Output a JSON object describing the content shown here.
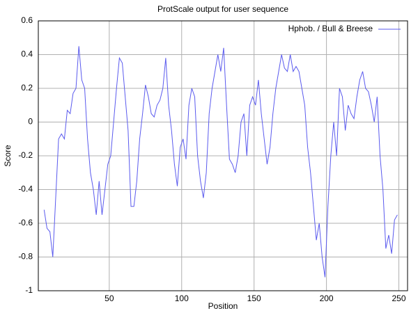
{
  "chart_data": {
    "type": "line",
    "title": "ProtScale output for user sequence",
    "x_label": "Position",
    "y_label": "Score",
    "x": [
      5,
      7,
      9,
      11,
      13,
      15,
      17,
      19,
      21,
      23,
      25,
      27,
      29,
      31,
      33,
      35,
      37,
      39,
      41,
      43,
      45,
      47,
      49,
      51,
      53,
      55,
      57,
      59,
      61,
      63,
      65,
      67,
      69,
      71,
      73,
      75,
      77,
      79,
      81,
      83,
      85,
      87,
      89,
      91,
      93,
      95,
      97,
      99,
      101,
      103,
      105,
      107,
      109,
      111,
      113,
      115,
      117,
      119,
      121,
      123,
      125,
      127,
      129,
      131,
      133,
      135,
      137,
      139,
      141,
      143,
      145,
      147,
      149,
      151,
      153,
      155,
      157,
      159,
      161,
      163,
      165,
      167,
      169,
      171,
      173,
      175,
      177,
      179,
      181,
      183,
      185,
      187,
      189,
      191,
      193,
      195,
      197,
      199,
      201,
      203,
      205,
      207,
      209,
      211,
      213,
      215,
      217,
      219,
      221,
      223,
      225,
      227,
      229,
      231,
      233,
      235,
      237,
      239,
      241,
      243,
      245,
      247,
      249
    ],
    "series": [
      {
        "name": "Hphob. / Bull & Breese",
        "color": "#5a5aee",
        "values": [
          -0.52,
          -0.63,
          -0.65,
          -0.8,
          -0.45,
          -0.1,
          -0.07,
          -0.1,
          0.07,
          0.05,
          0.17,
          0.2,
          0.45,
          0.25,
          0.2,
          -0.1,
          -0.3,
          -0.4,
          -0.55,
          -0.35,
          -0.55,
          -0.4,
          -0.25,
          -0.2,
          0,
          0.2,
          0.38,
          0.35,
          0.15,
          -0.05,
          -0.5,
          -0.5,
          -0.35,
          -0.1,
          0.05,
          0.22,
          0.15,
          0.05,
          0.03,
          0.1,
          0.13,
          0.2,
          0.38,
          0.1,
          -0.05,
          -0.25,
          -0.38,
          -0.15,
          -0.1,
          -0.22,
          0.1,
          0.2,
          0.15,
          -0.2,
          -0.35,
          -0.45,
          -0.3,
          0.05,
          0.2,
          0.3,
          0.4,
          0.3,
          0.44,
          0.1,
          -0.22,
          -0.25,
          -0.3,
          -0.2,
          0,
          0.05,
          -0.2,
          0.1,
          0.15,
          0.1,
          0.25,
          0.05,
          -0.1,
          -0.25,
          -0.15,
          0.05,
          0.2,
          0.3,
          0.4,
          0.32,
          0.3,
          0.4,
          0.3,
          0.33,
          0.3,
          0.2,
          0.1,
          -0.15,
          -0.3,
          -0.5,
          -0.7,
          -0.6,
          -0.8,
          -0.92,
          -0.5,
          -0.2,
          0,
          -0.2,
          0.2,
          0.15,
          -0.05,
          0.1,
          0.05,
          0.02,
          0.15,
          0.25,
          0.3,
          0.2,
          0.18,
          0.1,
          0,
          0.15,
          -0.2,
          -0.4,
          -0.75,
          -0.67,
          -0.78,
          -0.58,
          -0.55
        ]
      }
    ],
    "xlim": [
      1,
      256
    ],
    "xticks": [
      50,
      100,
      150,
      200,
      250
    ],
    "ylim": [
      -1,
      0.6
    ],
    "yticks": [
      -1,
      -0.8,
      -0.6,
      -0.4,
      -0.2,
      0,
      0.2,
      0.4,
      0.6
    ],
    "grid": true,
    "legend": "upper right"
  }
}
